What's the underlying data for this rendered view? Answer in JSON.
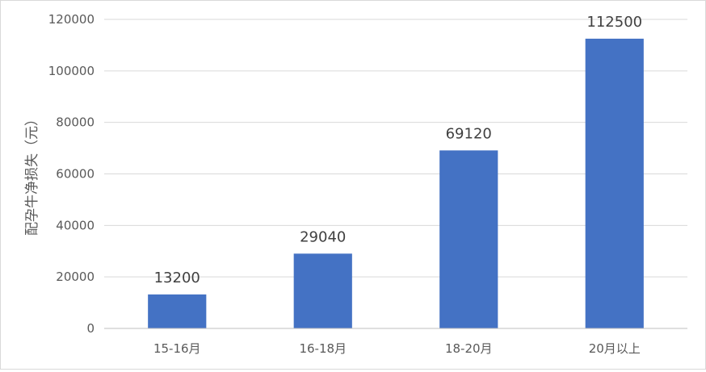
{
  "chart_data": {
    "type": "bar",
    "title": "",
    "xlabel": "",
    "ylabel": "配孕牛净损失（元）",
    "categories": [
      "15-16月",
      "16-18月",
      "18-20月",
      "20月以上"
    ],
    "values": [
      13200,
      29040,
      69120,
      112500
    ],
    "data_labels": [
      "13200",
      "29040",
      "69120",
      "112500"
    ],
    "ylim": [
      0,
      120000
    ],
    "y_ticks": [
      "0",
      "20000",
      "40000",
      "60000",
      "80000",
      "100000",
      "120000"
    ],
    "grid": true,
    "legend": "none",
    "colors": {
      "bar": "#4472C4",
      "grid": "#d9d9d9",
      "axis": "#bfbfbf",
      "text": "#595959",
      "label": "#404040"
    }
  }
}
